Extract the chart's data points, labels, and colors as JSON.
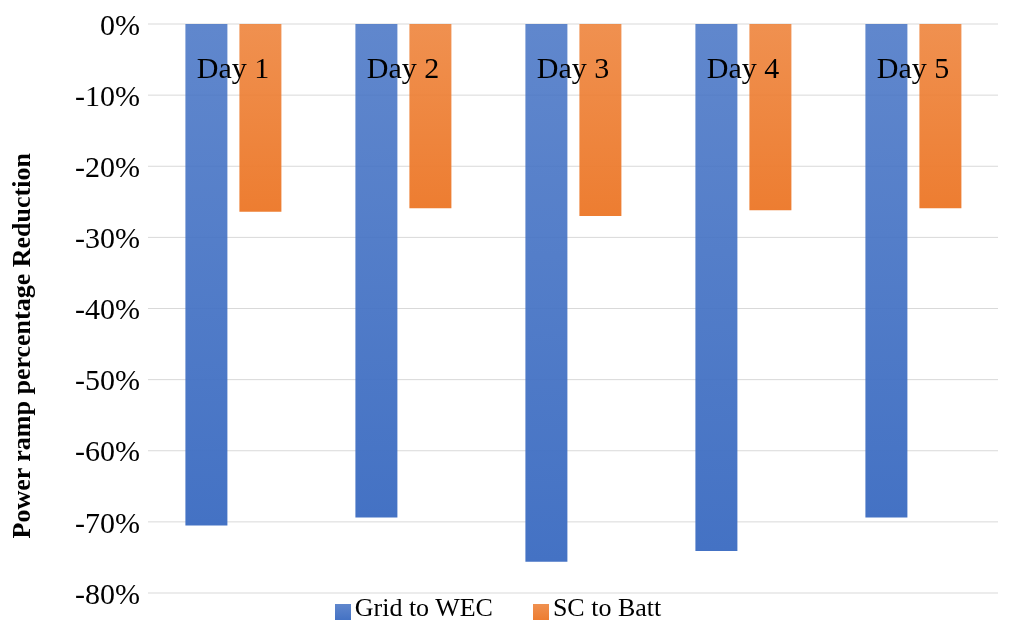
{
  "chart_data": {
    "type": "bar",
    "ylabel": "Power ramp percentage Reduction",
    "categories": [
      "Day 1",
      "Day 2",
      "Day 3",
      "Day 4",
      "Day 5"
    ],
    "series": [
      {
        "name": "Grid to WEC",
        "color": "#4472c4",
        "values": [
          -70.5,
          -69.4,
          -75.6,
          -74.1,
          -69.4
        ]
      },
      {
        "name": "SC to Batt",
        "color": "#ed7d31",
        "values": [
          -26.4,
          -25.9,
          -27.0,
          -26.2,
          -25.9
        ]
      }
    ],
    "ylim": [
      -80,
      0
    ],
    "yticks": [
      {
        "value": 0,
        "label": "0%"
      },
      {
        "value": -10,
        "label": "-10%"
      },
      {
        "value": -20,
        "label": "-20%"
      },
      {
        "value": -30,
        "label": "-30%"
      },
      {
        "value": -40,
        "label": "-40%"
      },
      {
        "value": -50,
        "label": "-50%"
      },
      {
        "value": -60,
        "label": "-60%"
      },
      {
        "value": -70,
        "label": "-70%"
      },
      {
        "value": -80,
        "label": "-80%"
      }
    ],
    "grid": "y",
    "legend": "bottom"
  }
}
